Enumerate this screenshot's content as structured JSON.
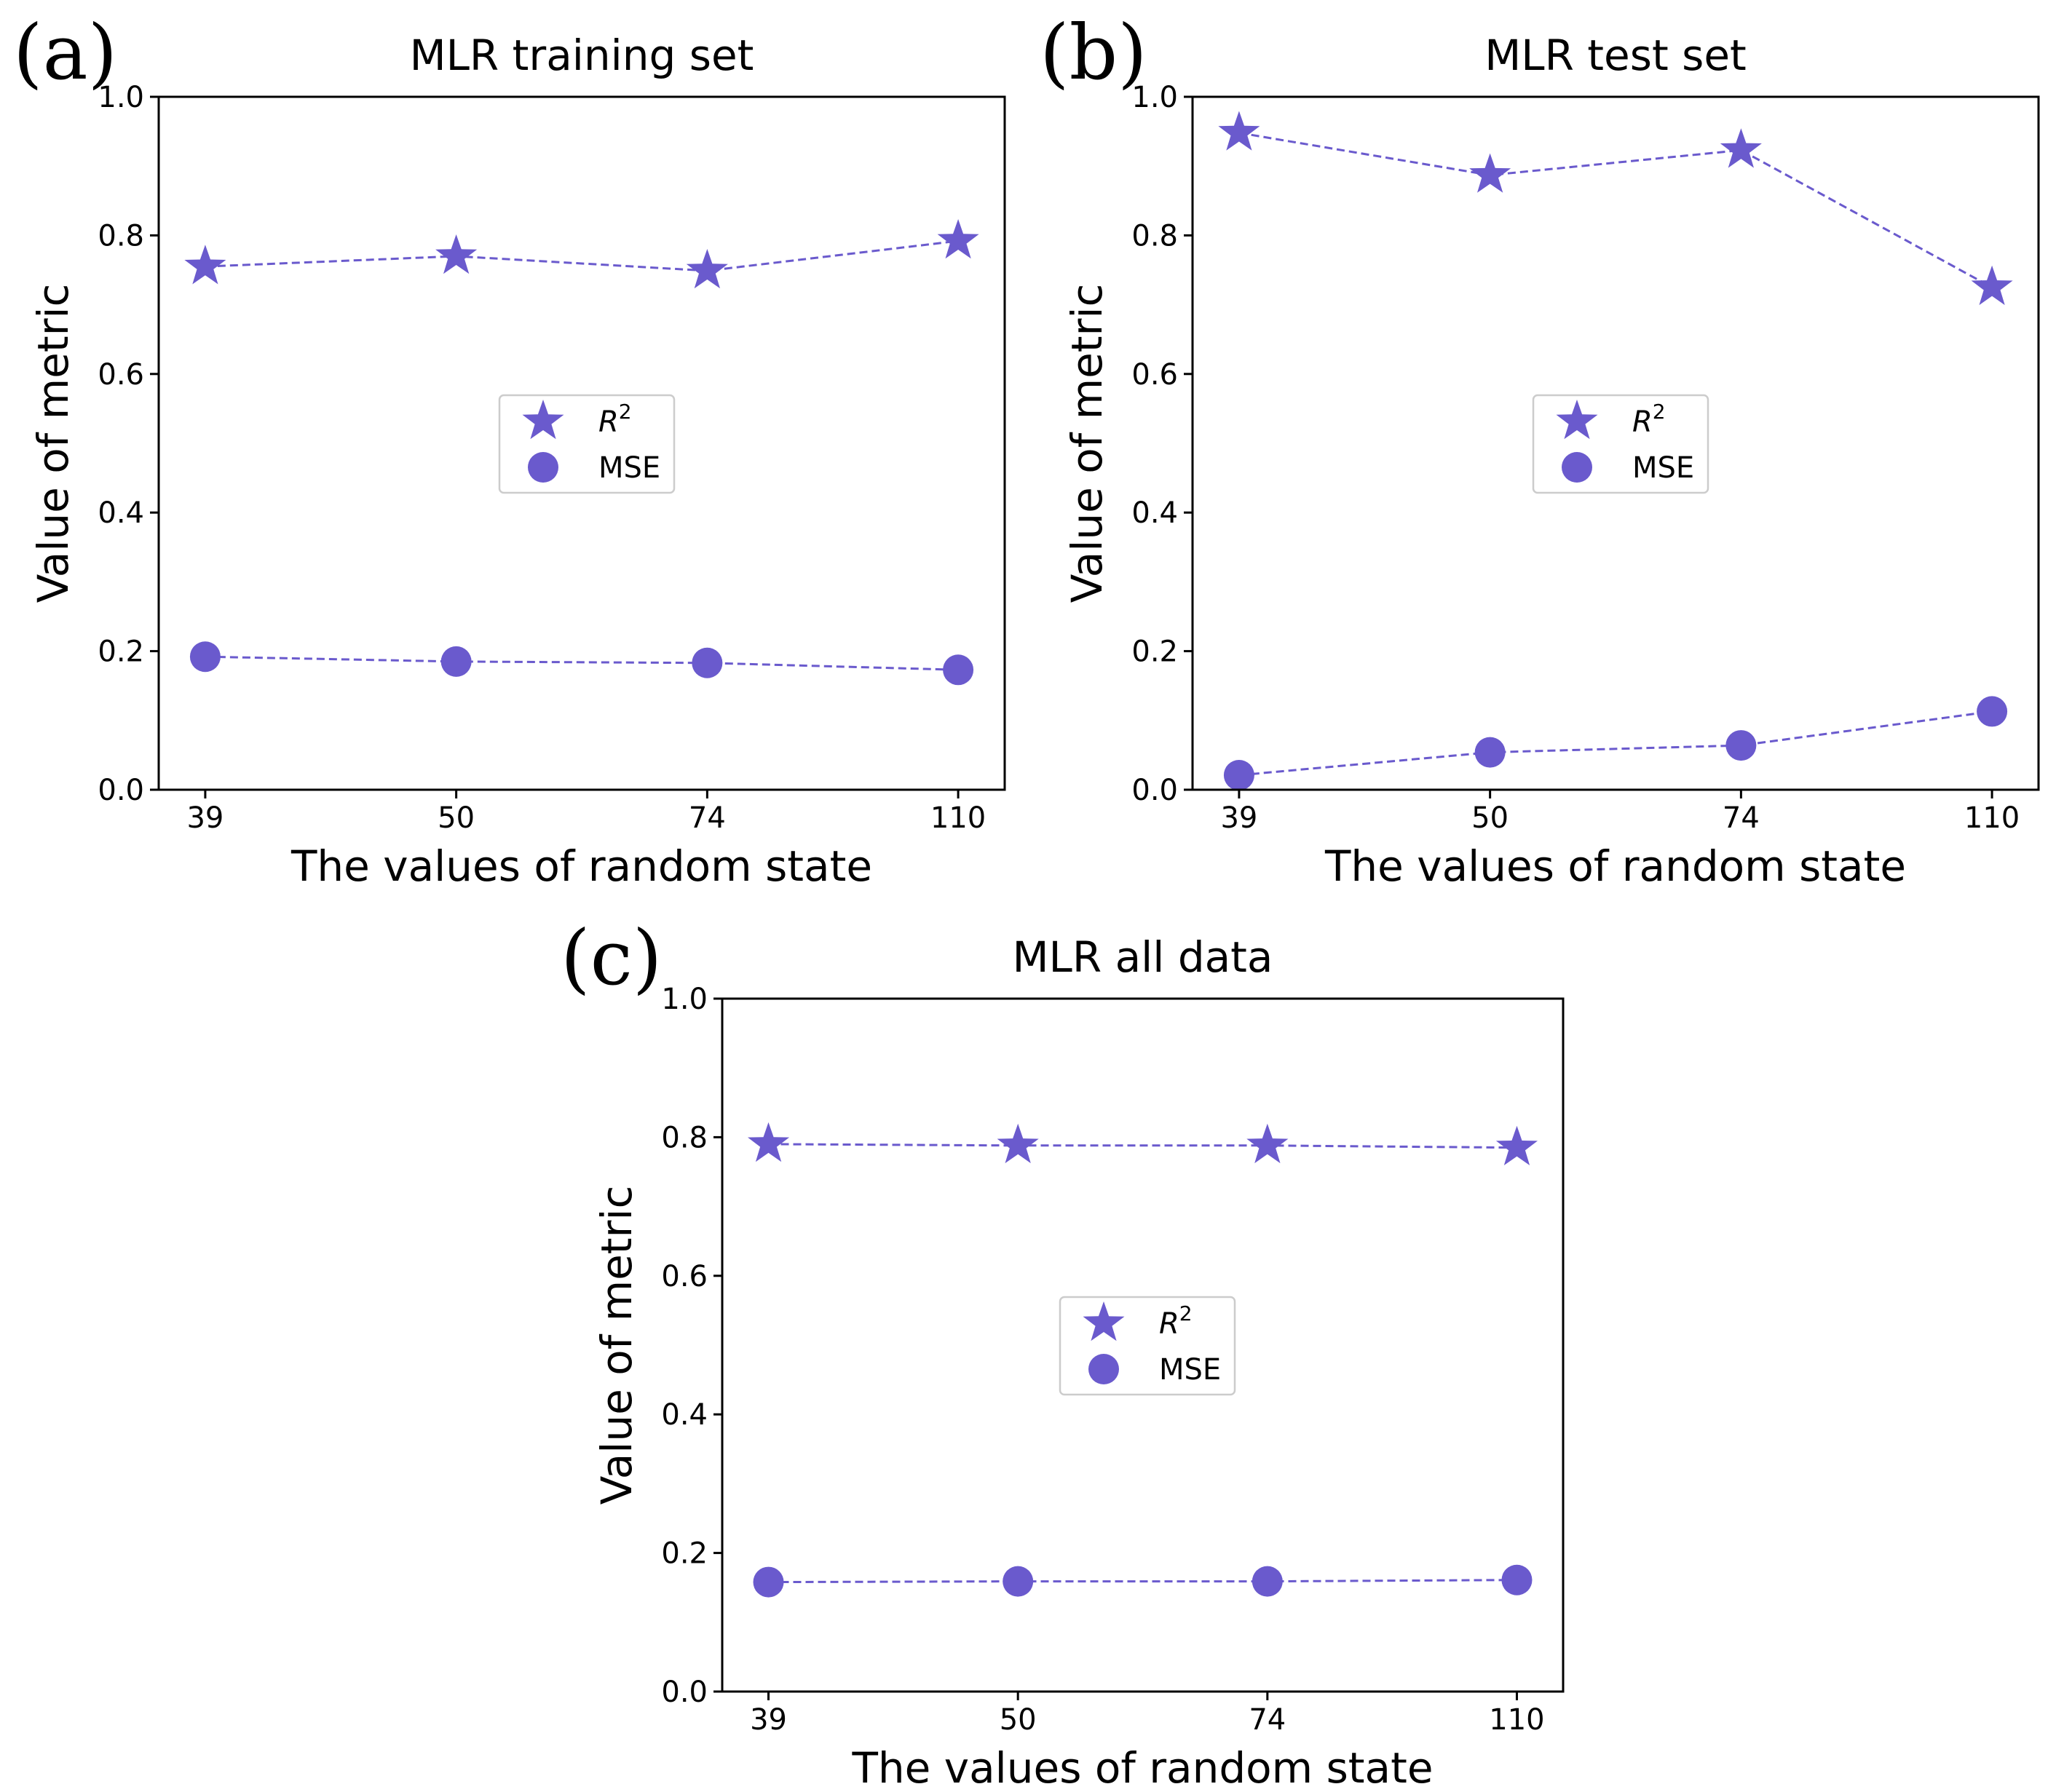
{
  "colors": {
    "series": "#6a5acd",
    "axis": "#000000"
  },
  "legend": {
    "r2_label": "R",
    "r2_sup": "2",
    "mse_label": "MSE"
  },
  "chart_data": [
    {
      "type": "line",
      "panel_label": "(a)",
      "title": "MLR training set",
      "xlabel": "The values of random state",
      "ylabel": "Value of metric",
      "categories": [
        "39",
        "50",
        "74",
        "110"
      ],
      "ylim": [
        0,
        1.0
      ],
      "yticks": [
        "0.0",
        "0.2",
        "0.4",
        "0.6",
        "0.8",
        "1.0"
      ],
      "legend_position": "center",
      "series": [
        {
          "name": "R^2",
          "marker": "star",
          "values": [
            0.755,
            0.77,
            0.749,
            0.792
          ]
        },
        {
          "name": "MSE",
          "marker": "circle",
          "values": [
            0.192,
            0.185,
            0.183,
            0.173
          ]
        }
      ]
    },
    {
      "type": "line",
      "panel_label": "(b)",
      "title": "MLR test set",
      "xlabel": "The values of random state",
      "ylabel": "Value of metric",
      "categories": [
        "39",
        "50",
        "74",
        "110"
      ],
      "ylim": [
        0,
        1.0
      ],
      "yticks": [
        "0.0",
        "0.2",
        "0.4",
        "0.6",
        "0.8",
        "1.0"
      ],
      "legend_position": "center",
      "series": [
        {
          "name": "R^2",
          "marker": "star",
          "values": [
            0.948,
            0.887,
            0.923,
            0.725
          ]
        },
        {
          "name": "MSE",
          "marker": "circle",
          "values": [
            0.021,
            0.054,
            0.064,
            0.113
          ]
        }
      ]
    },
    {
      "type": "line",
      "panel_label": "(c)",
      "title": "MLR all data",
      "xlabel": "The values of random state",
      "ylabel": "Value of metric",
      "categories": [
        "39",
        "50",
        "74",
        "110"
      ],
      "ylim": [
        0,
        1.0
      ],
      "yticks": [
        "0.0",
        "0.2",
        "0.4",
        "0.6",
        "0.8",
        "1.0"
      ],
      "legend_position": "center",
      "series": [
        {
          "name": "R^2",
          "marker": "star",
          "values": [
            0.79,
            0.788,
            0.788,
            0.785
          ]
        },
        {
          "name": "MSE",
          "marker": "circle",
          "values": [
            0.158,
            0.159,
            0.159,
            0.161
          ]
        }
      ]
    }
  ]
}
